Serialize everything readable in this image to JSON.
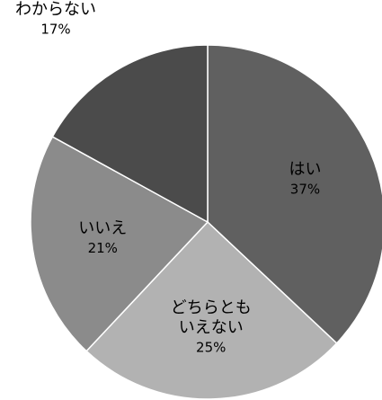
{
  "chart_data": {
    "type": "pie",
    "categories": [
      "はい",
      "どちらとも\nいえない",
      "いいえ",
      "わからない"
    ],
    "values": [
      37,
      25,
      21,
      17
    ],
    "value_labels": [
      "37%",
      "25%",
      "21%",
      "17%"
    ],
    "colors": [
      "#606060",
      "#b2b2b2",
      "#8b8b8b",
      "#4b4b4b"
    ]
  }
}
